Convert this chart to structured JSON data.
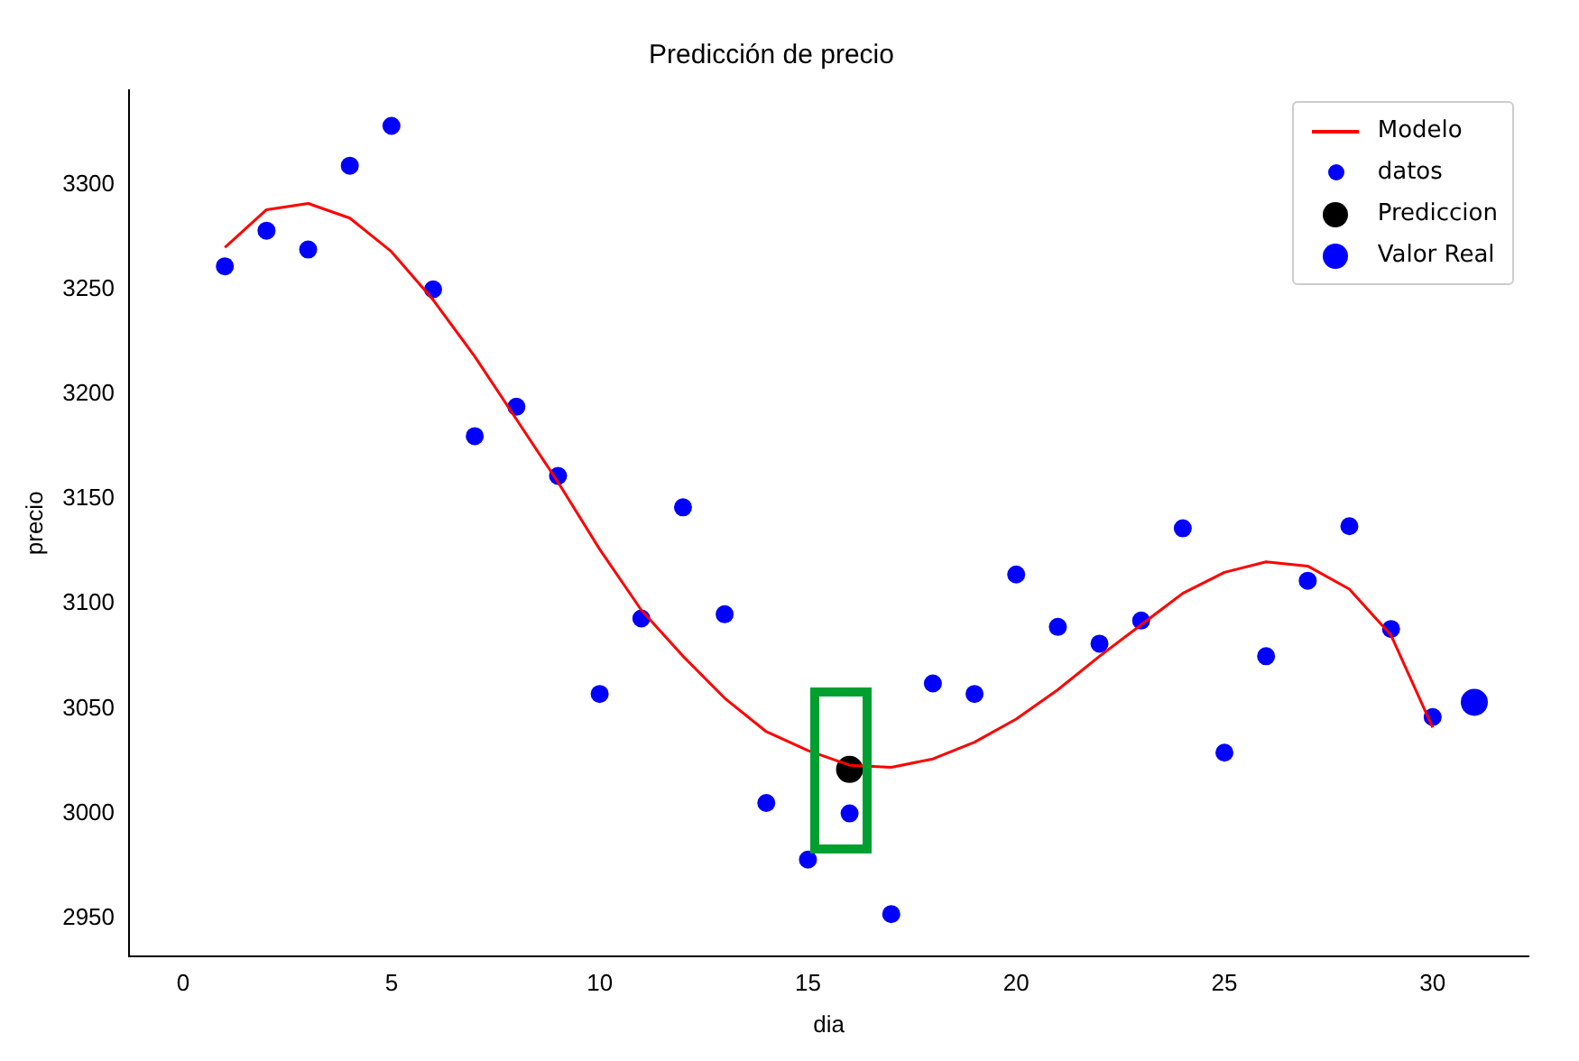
{
  "chart_data": {
    "type": "scatter",
    "title": "Predicción de precio",
    "xlabel": "dia",
    "ylabel": "precio",
    "xlim": [
      -1.3,
      32.3
    ],
    "xticks": [
      0,
      5,
      10,
      15,
      20,
      25,
      30
    ],
    "ylim": [
      2932,
      3345
    ],
    "yticks": [
      2950,
      3000,
      3050,
      3100,
      3150,
      3200,
      3250,
      3300
    ],
    "grid": false,
    "legend": "top right",
    "marker": "circle",
    "series": [
      {
        "name": "Modelo",
        "type": "line",
        "marker": "none",
        "color": "#ff0000",
        "x": [
          1,
          2,
          3,
          4,
          5,
          6,
          7,
          8,
          9,
          10,
          11,
          12,
          13,
          14,
          15,
          16,
          17,
          18,
          19,
          20,
          21,
          22,
          23,
          24,
          25,
          26,
          27,
          28,
          29,
          30
        ],
        "values": [
          3270,
          3288,
          3291,
          3284,
          3268,
          3245,
          3218,
          3188,
          3158,
          3126,
          3097,
          3075,
          3055,
          3039,
          3030,
          3023,
          3022,
          3026,
          3034,
          3045,
          3059,
          3075,
          3090,
          3105,
          3115,
          3120,
          3118,
          3107,
          3085,
          3041
        ]
      },
      {
        "name": "datos",
        "color": "#0000ff",
        "x": [
          1,
          2,
          3,
          4,
          5,
          6,
          7,
          8,
          9,
          10,
          11,
          12,
          13,
          14,
          15,
          16,
          17,
          18,
          19,
          20,
          21,
          22,
          23,
          24,
          25,
          26,
          27,
          28,
          29,
          30
        ],
        "values": [
          3261,
          3278,
          3269,
          3309,
          3328,
          3250,
          3180,
          3194,
          3161,
          3057,
          3093,
          3146,
          3095,
          3005,
          2978,
          3000,
          2952,
          3062,
          3057,
          3114,
          3089,
          3081,
          3092,
          3136,
          3029,
          3075,
          3111,
          3137,
          3088,
          3046
        ]
      },
      {
        "name": "Prediccion",
        "color": "#000000",
        "x": [
          16
        ],
        "values": [
          3021
        ]
      },
      {
        "name": "Valor Real",
        "color": "#0000ff",
        "x": [
          31
        ],
        "values": [
          3053
        ]
      }
    ]
  }
}
